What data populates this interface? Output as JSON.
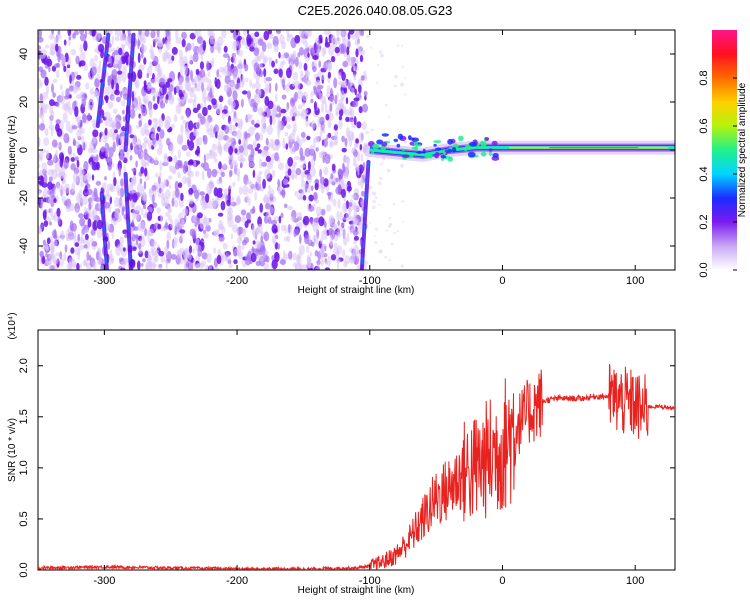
{
  "title": "C2E5.2026.040.08.05.G23",
  "chart_data": [
    {
      "type": "heatmap",
      "xlabel": "Height of straight line (km)",
      "ylabel": "Frequency (Hz)",
      "xlim": [
        -350,
        130
      ],
      "ylim": [
        -50,
        50
      ],
      "xticks": [
        -300,
        -200,
        -100,
        0,
        100
      ],
      "xtick_labels": [
        "-300",
        "-200",
        "-100",
        "0",
        "100"
      ],
      "yticks": [
        -40,
        -20,
        0,
        20,
        40
      ],
      "ytick_labels": [
        "-40",
        "-20",
        "0",
        "20",
        "40"
      ],
      "colorbar": {
        "label": "Normalized spectral amplitude",
        "range": [
          0,
          1
        ],
        "ticks": [
          0.0,
          0.2,
          0.4,
          0.6,
          0.8
        ],
        "tick_labels": [
          "0.0",
          "0.2",
          "0.4",
          "0.6",
          "0.8"
        ],
        "colors": [
          "#ffffff",
          "#c9a8f5",
          "#7a1cf0",
          "#1a2cff",
          "#00d5ff",
          "#21f08a",
          "#b5f20b",
          "#ffd000",
          "#ff6a00",
          "#ff1020",
          "#ff1488"
        ]
      },
      "noise_region_x": [
        -350,
        -103
      ],
      "signal_track": [
        {
          "x": -100,
          "y": 0
        },
        {
          "x": -80,
          "y": -1
        },
        {
          "x": -60,
          "y": -2
        },
        {
          "x": -40,
          "y": 0
        },
        {
          "x": -20,
          "y": 1
        },
        {
          "x": 0,
          "y": 1
        },
        {
          "x": 40,
          "y": 1
        },
        {
          "x": 80,
          "y": 1
        },
        {
          "x": 130,
          "y": 1
        }
      ]
    },
    {
      "type": "line",
      "xlabel": "Height of straight line (km)",
      "ylabel": "SNR (10 * v/v)",
      "ylabel_multiplier": "(x10⁴)",
      "xlim": [
        -350,
        130
      ],
      "ylim": [
        0,
        2.35
      ],
      "xticks": [
        -300,
        -200,
        -100,
        0,
        100
      ],
      "xtick_labels": [
        "-300",
        "-200",
        "-100",
        "0",
        "100"
      ],
      "yticks": [
        0.0,
        0.5,
        1.0,
        1.5,
        2.0
      ],
      "ytick_labels": [
        "0.0",
        "0.5",
        "1.0",
        "1.5",
        "2.0"
      ],
      "series": [
        {
          "color": "#e8231f",
          "x": [
            -350,
            -300,
            -250,
            -200,
            -150,
            -110,
            -100,
            -90,
            -80,
            -70,
            -60,
            -50,
            -40,
            -30,
            -20,
            -10,
            0,
            10,
            20,
            30,
            40,
            50,
            60,
            70,
            80,
            90,
            100,
            105,
            110,
            120,
            130
          ],
          "y": [
            0.02,
            0.03,
            0.02,
            0.01,
            0.01,
            0.02,
            0.04,
            0.08,
            0.15,
            0.3,
            0.5,
            0.7,
            0.8,
            0.95,
            1.0,
            1.1,
            1.2,
            1.4,
            1.55,
            1.65,
            1.68,
            1.68,
            1.68,
            1.7,
            1.7,
            1.65,
            1.62,
            1.55,
            1.6,
            1.6,
            1.58
          ]
        }
      ]
    }
  ]
}
